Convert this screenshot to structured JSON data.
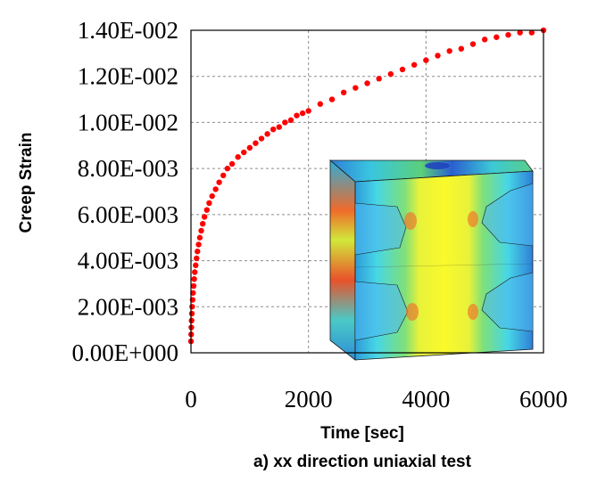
{
  "chart_data": {
    "type": "scatter",
    "xlabel": "Time [sec]",
    "ylabel": "Creep Strain",
    "caption": "a) xx direction uniaxial test",
    "xlim": [
      0,
      6000
    ],
    "ylim": [
      0,
      0.014
    ],
    "x_ticks": [
      {
        "value": 0,
        "label": "0"
      },
      {
        "value": 2000,
        "label": "2000"
      },
      {
        "value": 4000,
        "label": "4000"
      },
      {
        "value": 6000,
        "label": "6000"
      }
    ],
    "y_ticks": [
      {
        "value": 0,
        "label": "0.00E+000"
      },
      {
        "value": 0.002,
        "label": "2.00E-003"
      },
      {
        "value": 0.004,
        "label": "4.00E-003"
      },
      {
        "value": 0.006,
        "label": "6.00E-003"
      },
      {
        "value": 0.008,
        "label": "8.00E-003"
      },
      {
        "value": 0.01,
        "label": "1.00E-002"
      },
      {
        "value": 0.012,
        "label": "1.20E-002"
      },
      {
        "value": 0.014,
        "label": "1.40E-002"
      }
    ],
    "grid": true,
    "marker_color": "#ff0000",
    "inset": "stress contour of unit cell (blue-green-yellow-red)",
    "series": [
      {
        "values": [
          [
            0,
            0.0005
          ],
          [
            3,
            0.0008
          ],
          [
            6,
            0.0011
          ],
          [
            10,
            0.0014
          ],
          [
            15,
            0.0017
          ],
          [
            20,
            0.002
          ],
          [
            28,
            0.0023
          ],
          [
            35,
            0.0026
          ],
          [
            45,
            0.0029
          ],
          [
            55,
            0.0032
          ],
          [
            65,
            0.0035
          ],
          [
            80,
            0.0038
          ],
          [
            95,
            0.0041
          ],
          [
            110,
            0.0044
          ],
          [
            130,
            0.0047
          ],
          [
            150,
            0.005
          ],
          [
            175,
            0.0053
          ],
          [
            200,
            0.0056
          ],
          [
            230,
            0.0059
          ],
          [
            270,
            0.0062
          ],
          [
            310,
            0.0065
          ],
          [
            360,
            0.0068
          ],
          [
            420,
            0.0071
          ],
          [
            480,
            0.0074
          ],
          [
            550,
            0.0077
          ],
          [
            620,
            0.008
          ],
          [
            700,
            0.0082
          ],
          [
            800,
            0.0085
          ],
          [
            900,
            0.0087
          ],
          [
            1000,
            0.0089
          ],
          [
            1100,
            0.0091
          ],
          [
            1200,
            0.0093
          ],
          [
            1300,
            0.0095
          ],
          [
            1400,
            0.0097
          ],
          [
            1500,
            0.0098
          ],
          [
            1600,
            0.01
          ],
          [
            1700,
            0.0101
          ],
          [
            1800,
            0.0103
          ],
          [
            1900,
            0.0104
          ],
          [
            2000,
            0.0105
          ],
          [
            2200,
            0.0108
          ],
          [
            2400,
            0.011
          ],
          [
            2600,
            0.0113
          ],
          [
            2800,
            0.0115
          ],
          [
            3000,
            0.0117
          ],
          [
            3200,
            0.0119
          ],
          [
            3400,
            0.0121
          ],
          [
            3600,
            0.0123
          ],
          [
            3800,
            0.0125
          ],
          [
            4000,
            0.0127
          ],
          [
            4200,
            0.0129
          ],
          [
            4400,
            0.0131
          ],
          [
            4600,
            0.0132
          ],
          [
            4800,
            0.0134
          ],
          [
            5000,
            0.0136
          ],
          [
            5200,
            0.0137
          ],
          [
            5400,
            0.0138
          ],
          [
            5600,
            0.0139
          ],
          [
            5800,
            0.0139
          ],
          [
            6000,
            0.014
          ]
        ]
      }
    ]
  }
}
